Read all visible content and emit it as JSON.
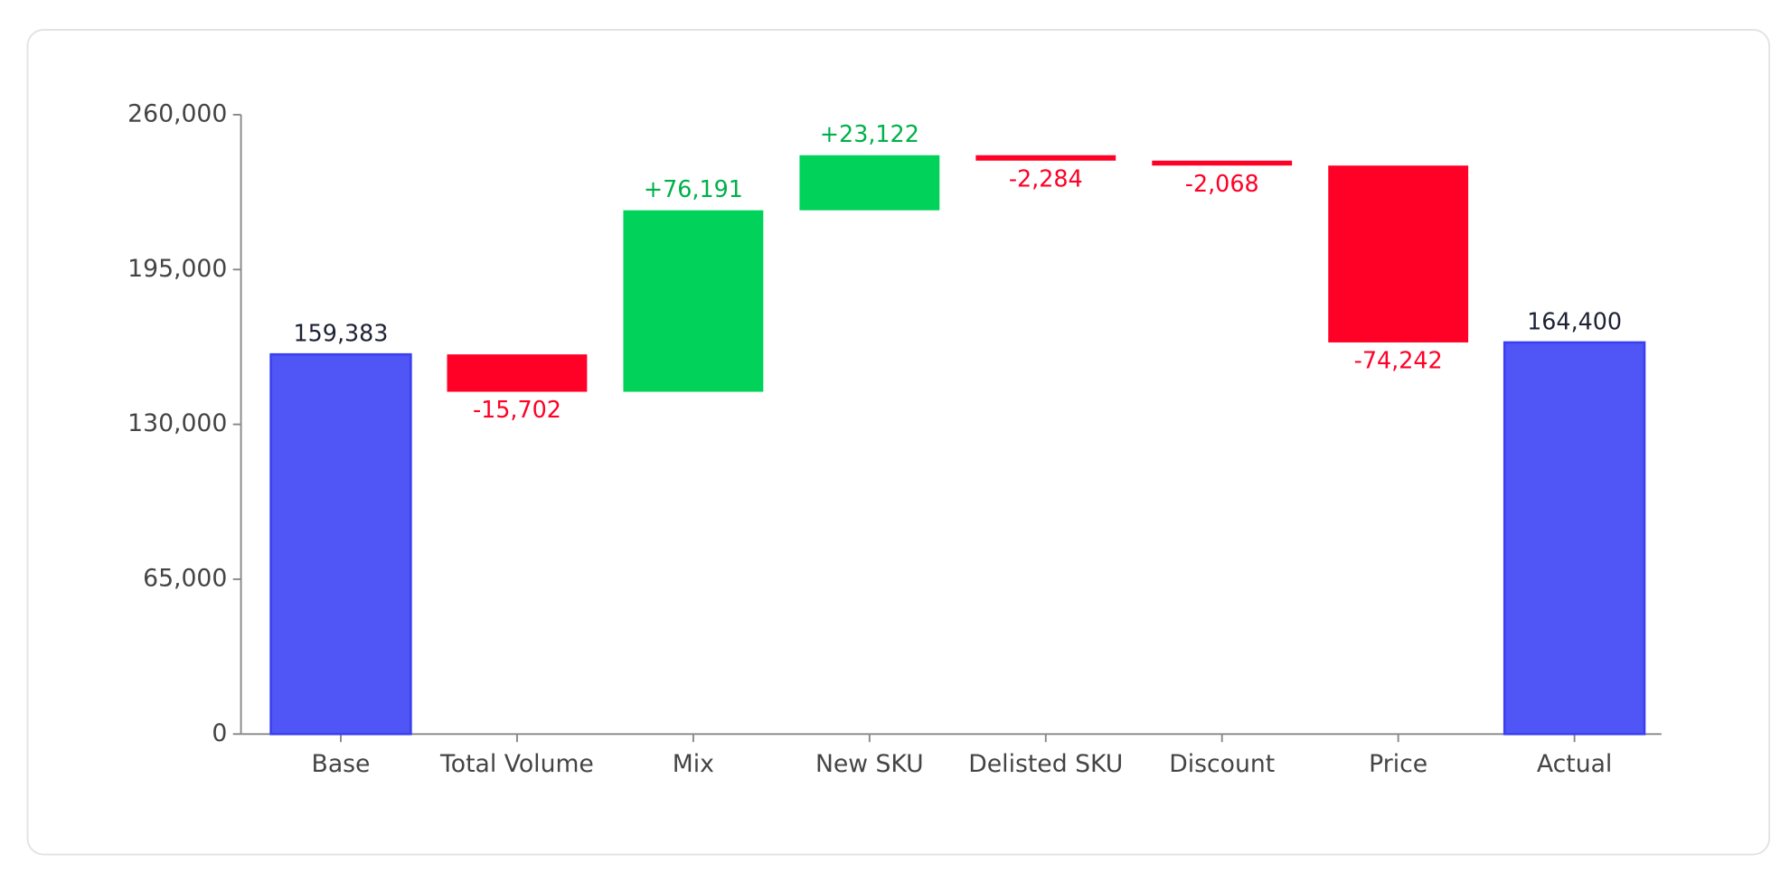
{
  "chart_data": {
    "type": "waterfall",
    "categories": [
      "Base",
      "Total Volume",
      "Mix",
      "New SKU",
      "Delisted SKU",
      "Discount",
      "Price",
      "Actual"
    ],
    "measures": [
      "absolute",
      "relative",
      "relative",
      "relative",
      "relative",
      "relative",
      "relative",
      "absolute"
    ],
    "values": [
      159383,
      -15702,
      76191,
      23122,
      -2284,
      -2068,
      -74242,
      164400
    ],
    "value_labels": [
      "159,383",
      "-15,702",
      "+76,191",
      "+23,122",
      "-2,284",
      "-2,068",
      "-74,242",
      "164,400"
    ],
    "colors": {
      "absolute": "#5055f5",
      "increase": "#00d25a",
      "decrease": "#ff0026"
    },
    "label_colors": {
      "absolute": "#1e2235",
      "increase": "#00b04a",
      "decrease": "#ff0026"
    },
    "ylim": [
      0,
      260000
    ],
    "yticks": [
      0,
      {
        "value": 65000,
        "label": "65,000"
      },
      {
        "value": 130000,
        "label": "130,000"
      },
      {
        "value": 195000,
        "label": "195,000"
      },
      {
        "value": 260000,
        "label": "260,000"
      }
    ]
  }
}
